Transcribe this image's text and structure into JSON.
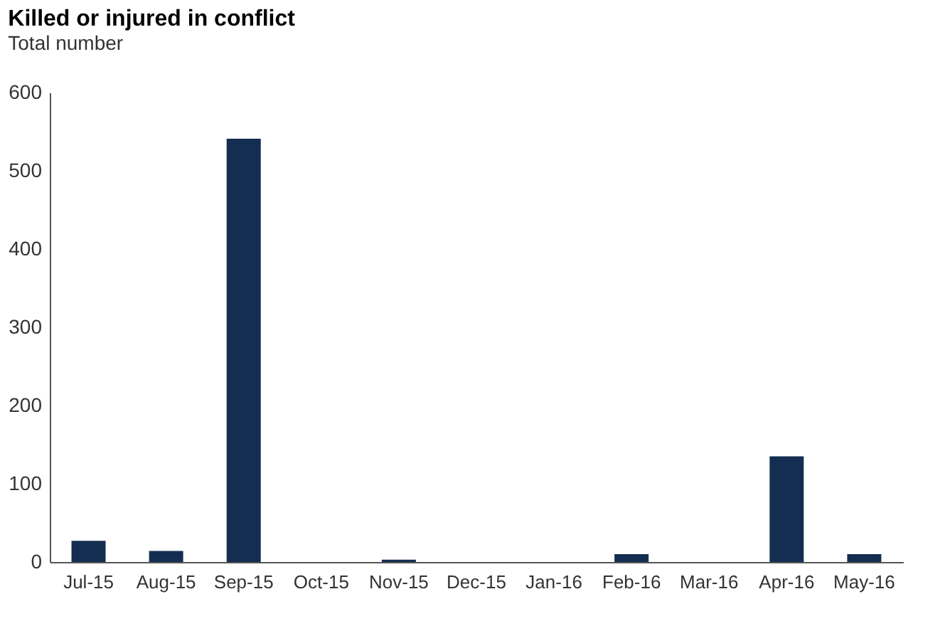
{
  "chart_data": {
    "type": "bar",
    "title": "Killed or injured in conflict",
    "subtitle": "Total number",
    "categories": [
      "Jul-15",
      "Aug-15",
      "Sep-15",
      "Oct-15",
      "Nov-15",
      "Dec-15",
      "Jan-16",
      "Feb-16",
      "Mar-16",
      "Apr-16",
      "May-16"
    ],
    "values": [
      27,
      14,
      541,
      0,
      3,
      0,
      0,
      10,
      0,
      135,
      10
    ],
    "color": "#142e52",
    "ylim": [
      0,
      600
    ],
    "yticks": [
      0,
      100,
      200,
      300,
      400,
      500,
      600
    ],
    "grid": false
  }
}
